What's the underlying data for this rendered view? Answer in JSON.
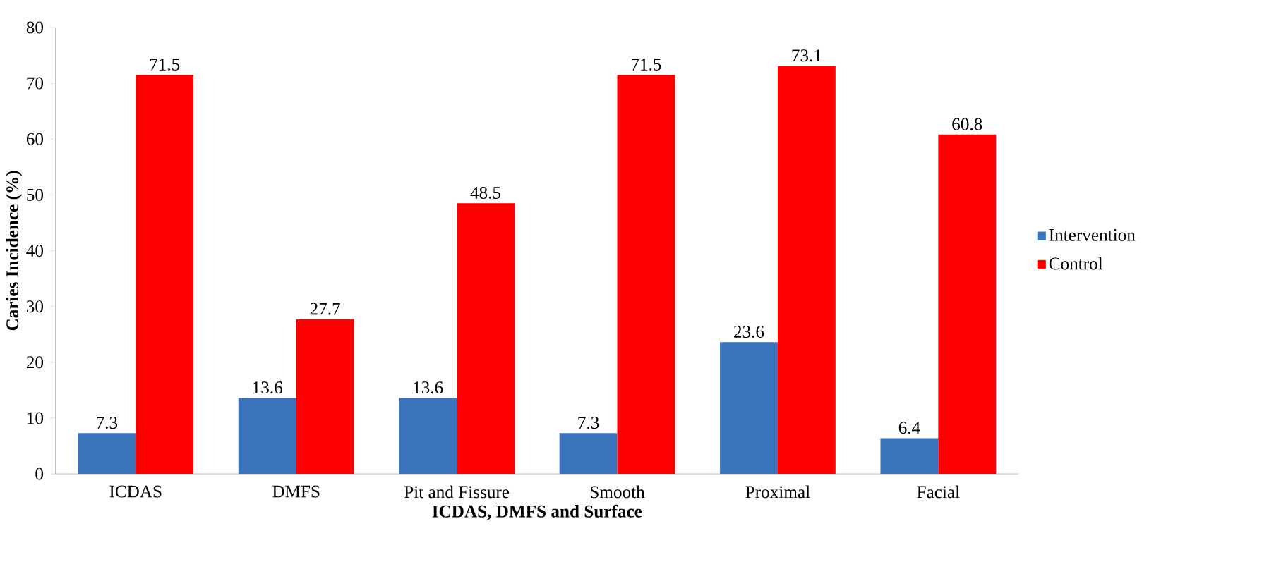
{
  "chart_data": {
    "type": "bar",
    "xlabel": "ICDAS, DMFS and Surface",
    "ylabel": "Caries Incidence (%)",
    "categories": [
      "ICDAS",
      "DMFS",
      "Pit and Fissure",
      "Smooth",
      "Proximal",
      "Facial"
    ],
    "series": [
      {
        "name": "Intervention",
        "color": "#3b74bd",
        "values": [
          7.3,
          13.6,
          13.6,
          7.3,
          23.6,
          6.4
        ]
      },
      {
        "name": "Control",
        "color": "#ff0000",
        "values": [
          71.5,
          27.7,
          48.5,
          71.5,
          73.1,
          60.8
        ]
      }
    ],
    "ylim": [
      0,
      80
    ],
    "yticks": [
      0,
      10,
      20,
      30,
      40,
      50,
      60,
      70,
      80
    ],
    "data_labels": true,
    "legend": "right",
    "grid": false
  }
}
